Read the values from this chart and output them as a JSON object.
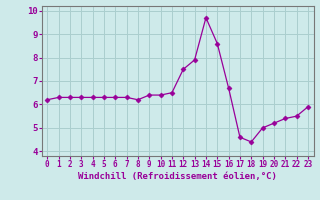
{
  "x": [
    0,
    1,
    2,
    3,
    4,
    5,
    6,
    7,
    8,
    9,
    10,
    11,
    12,
    13,
    14,
    15,
    16,
    17,
    18,
    19,
    20,
    21,
    22,
    23
  ],
  "y": [
    6.2,
    6.3,
    6.3,
    6.3,
    6.3,
    6.3,
    6.3,
    6.3,
    6.2,
    6.4,
    6.4,
    6.5,
    7.5,
    7.9,
    9.7,
    8.6,
    6.7,
    4.6,
    4.4,
    5.0,
    5.2,
    5.4,
    5.5,
    5.9
  ],
  "line_color": "#990099",
  "marker": "D",
  "marker_size": 2.5,
  "xlabel": "Windchill (Refroidissement éolien,°C)",
  "ylim": [
    3.8,
    10.2
  ],
  "xlim": [
    -0.5,
    23.5
  ],
  "yticks": [
    4,
    5,
    6,
    7,
    8,
    9,
    10
  ],
  "xticks": [
    0,
    1,
    2,
    3,
    4,
    5,
    6,
    7,
    8,
    9,
    10,
    11,
    12,
    13,
    14,
    15,
    16,
    17,
    18,
    19,
    20,
    21,
    22,
    23
  ],
  "bg_color": "#ceeaea",
  "grid_color": "#aacece",
  "tick_label_color": "#990099",
  "xlabel_color": "#990099",
  "xlabel_fontsize": 6.5,
  "tick_fontsize": 6.5,
  "xtick_fontsize": 5.5
}
